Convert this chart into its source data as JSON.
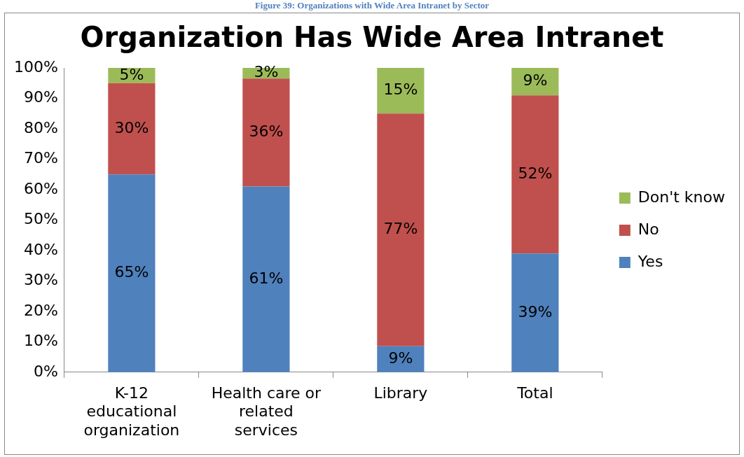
{
  "chart_data": {
    "type": "bar",
    "stacked": true,
    "title": "Organization Has Wide Area Intranet",
    "annotations": [
      "Figure 39: Organizations with Wide Area Intranet by Sector"
    ],
    "categories": [
      "K-12 educational organization",
      "Health care or related services",
      "Library",
      "Total"
    ],
    "series": [
      {
        "name": "Yes",
        "color": "#4f81bd",
        "values": [
          65,
          61,
          8.5,
          39
        ],
        "value_labels": [
          "65%",
          "61%",
          "9%",
          "39%"
        ]
      },
      {
        "name": "No",
        "color": "#c0504d",
        "values": [
          30,
          35.5,
          76.5,
          52
        ],
        "value_labels": [
          "30%",
          "36%",
          "77%",
          "52%"
        ]
      },
      {
        "name": "Don't know",
        "color": "#9bbb59",
        "values": [
          5,
          3.5,
          15,
          9
        ],
        "value_labels": [
          "5%",
          "3%",
          "15%",
          "9%"
        ]
      }
    ],
    "ylim": [
      0,
      100
    ],
    "yticks": [
      {
        "value": 0,
        "label": "0%"
      },
      {
        "value": 10,
        "label": "10%"
      },
      {
        "value": 20,
        "label": "20%"
      },
      {
        "value": 30,
        "label": "30%"
      },
      {
        "value": 40,
        "label": "40%"
      },
      {
        "value": 50,
        "label": "50%"
      },
      {
        "value": 60,
        "label": "60%"
      },
      {
        "value": 70,
        "label": "70%"
      },
      {
        "value": 80,
        "label": "80%"
      },
      {
        "value": 90,
        "label": "90%"
      },
      {
        "value": 100,
        "label": "100%"
      }
    ],
    "grid": false,
    "legend": "right"
  }
}
